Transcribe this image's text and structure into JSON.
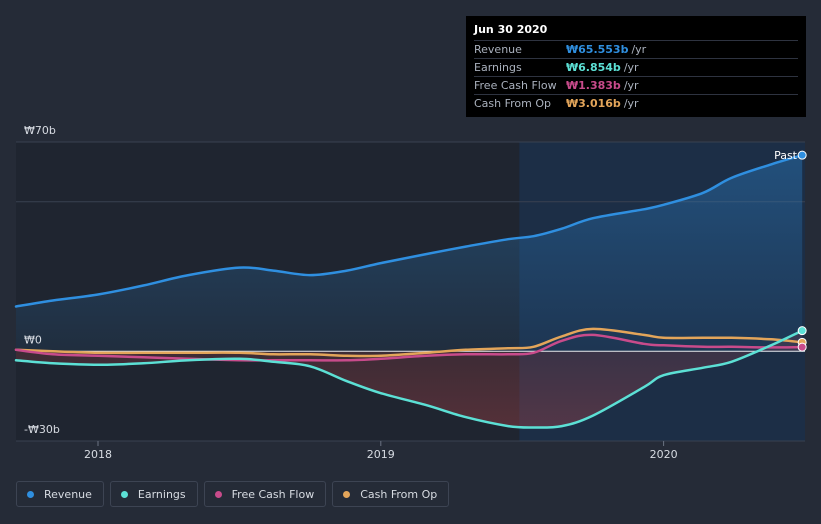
{
  "chart_data": {
    "type": "line",
    "title": "",
    "xlabel": "",
    "ylabel": "",
    "ylim": [
      -30,
      70
    ],
    "x": [
      2017.71,
      2017.84,
      2018.0,
      2018.16,
      2018.32,
      2018.5,
      2018.62,
      2018.75,
      2018.88,
      2019.0,
      2019.16,
      2019.3,
      2019.45,
      2019.54,
      2019.64,
      2019.75,
      2019.93,
      2020.0,
      2020.14,
      2020.24,
      2020.38,
      2020.49
    ],
    "x_ticks": [
      {
        "value": 2018,
        "label": "2018"
      },
      {
        "value": 2019,
        "label": "2019"
      },
      {
        "value": 2020,
        "label": "2020"
      }
    ],
    "y_ticks": [
      {
        "value": 70,
        "label": "₩70b"
      },
      {
        "value": 0,
        "label": "₩0"
      },
      {
        "value": -30,
        "label": "-₩30b"
      }
    ],
    "past_region_start": 2019.49,
    "past_label": "Past",
    "series": [
      {
        "name": "Revenue",
        "color": "#2f8fe0",
        "values": [
          15,
          17,
          19,
          22,
          25.5,
          28,
          27,
          25.5,
          27,
          29.5,
          32.5,
          35,
          37.5,
          38.5,
          41,
          44.5,
          47.5,
          49,
          53,
          58,
          62.5,
          65.6
        ]
      },
      {
        "name": "Earnings",
        "color": "#5ce0d5",
        "values": [
          -3,
          -4,
          -4.5,
          -4,
          -3,
          -2.5,
          -3.5,
          -5,
          -10,
          -14,
          -18,
          -22,
          -25,
          -25.5,
          -25,
          -21.5,
          -12,
          -8,
          -5.5,
          -3.5,
          2,
          6.9
        ]
      },
      {
        "name": "Free Cash Flow",
        "color": "#c84b8b",
        "values": [
          0.5,
          -1,
          -1.5,
          -2,
          -2.5,
          -3,
          -3,
          -3,
          -3,
          -2.5,
          -1.5,
          -1,
          -1,
          -0.5,
          3.5,
          5.5,
          2.5,
          2,
          1.5,
          1.5,
          1.3,
          1.4
        ]
      },
      {
        "name": "Cash From Op",
        "color": "#e3a55a",
        "values": [
          0.5,
          0,
          -0.5,
          -0.5,
          -0.5,
          -0.5,
          -1,
          -1,
          -1.5,
          -1.5,
          -0.5,
          0.5,
          1,
          1.5,
          5,
          7.5,
          5.5,
          4.5,
          4.5,
          4.5,
          4,
          3.0
        ]
      }
    ]
  },
  "tooltip": {
    "date": "Jun 30 2020",
    "rows": [
      {
        "label": "Revenue",
        "value": "₩65.553b",
        "unit": "/yr",
        "color": "#2f8fe0"
      },
      {
        "label": "Earnings",
        "value": "₩6.854b",
        "unit": "/yr",
        "color": "#5ce0d5"
      },
      {
        "label": "Free Cash Flow",
        "value": "₩1.383b",
        "unit": "/yr",
        "color": "#c84b8b"
      },
      {
        "label": "Cash From Op",
        "value": "₩3.016b",
        "unit": "/yr",
        "color": "#e3a55a"
      }
    ]
  },
  "legend": [
    {
      "label": "Revenue",
      "color": "#2f8fe0"
    },
    {
      "label": "Earnings",
      "color": "#5ce0d5"
    },
    {
      "label": "Free Cash Flow",
      "color": "#c84b8b"
    },
    {
      "label": "Cash From Op",
      "color": "#e3a55a"
    }
  ]
}
